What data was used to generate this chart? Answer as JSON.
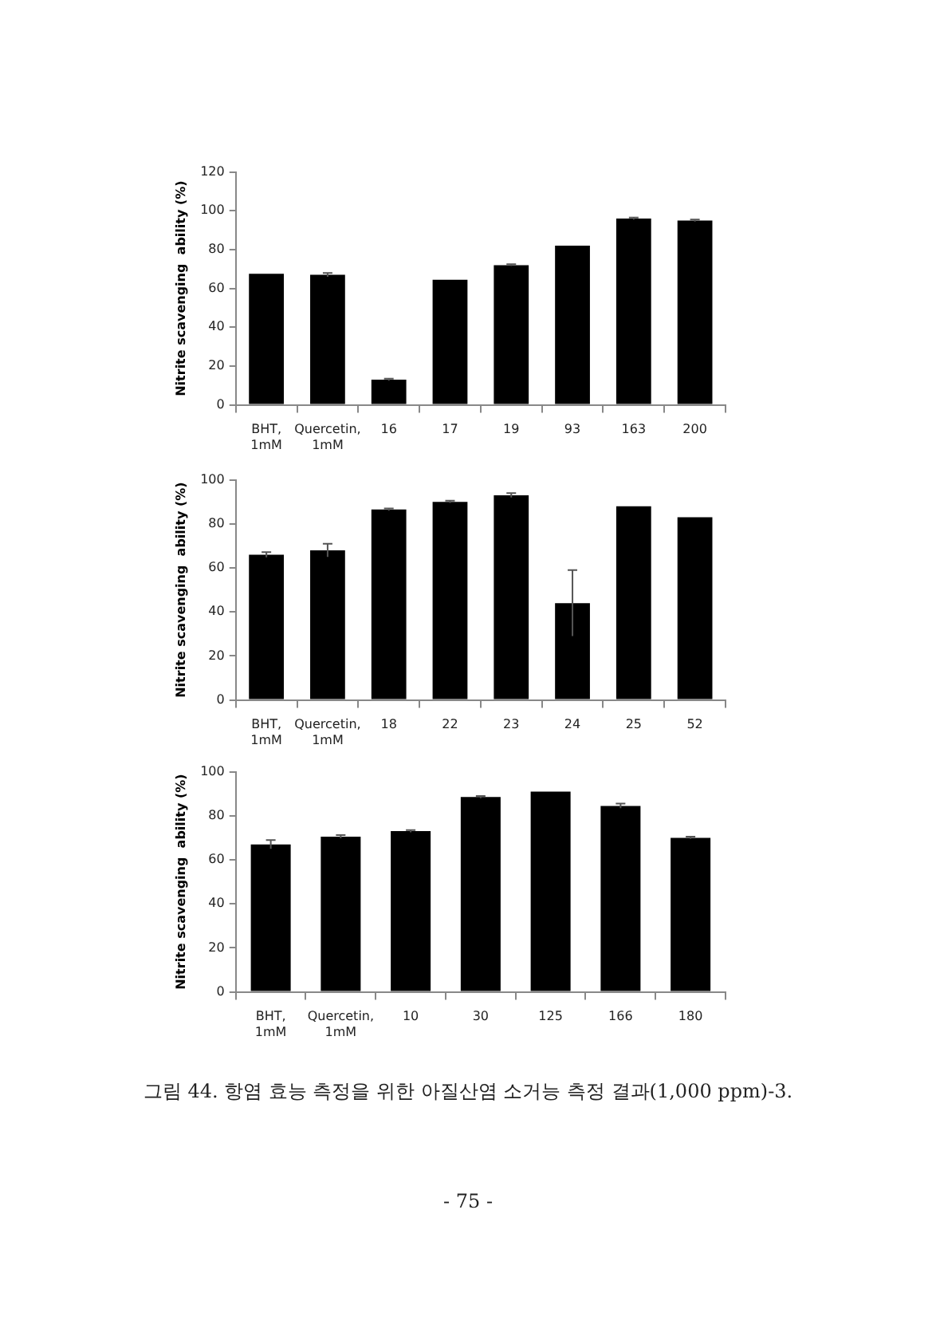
{
  "chart_data": [
    {
      "type": "bar",
      "ylabel": "Nitrite scavenging  ability (%)",
      "categories": [
        "BHT, 1mM",
        "Quercetin, 1mM",
        "16",
        "17",
        "19",
        "93",
        "163",
        "200"
      ],
      "color": "#000000",
      "values": [
        67.5,
        67,
        13,
        64.5,
        72,
        82,
        96,
        95
      ],
      "errors": [
        null,
        1,
        0.5,
        null,
        0.5,
        null,
        0.5,
        0.5
      ],
      "ylim": [
        0,
        120
      ],
      "yticks": [
        0,
        20,
        40,
        60,
        80,
        100,
        120
      ],
      "grid": false,
      "legend": false
    },
    {
      "type": "bar",
      "ylabel": "Nitrite scavenging  ability (%)",
      "categories": [
        "BHT, 1mM",
        "Quercetin, 1mM",
        "18",
        "22",
        "23",
        "24",
        "25",
        "52"
      ],
      "color": "#000000",
      "values": [
        66,
        68,
        86.5,
        90,
        93,
        44,
        88,
        83
      ],
      "errors": [
        1.2,
        3,
        0.5,
        0.5,
        1,
        15,
        null,
        null
      ],
      "ylim": [
        0,
        100
      ],
      "yticks": [
        0,
        20,
        40,
        60,
        80,
        100
      ],
      "grid": false,
      "legend": false
    },
    {
      "type": "bar",
      "ylabel": "Nitrite scavenging  ability (%)",
      "categories": [
        "BHT, 1mM",
        "Quercetin, 1mM",
        "10",
        "30",
        "125",
        "166",
        "180"
      ],
      "color": "#000000",
      "values": [
        67,
        70.5,
        73,
        88.5,
        91,
        84.5,
        70
      ],
      "errors": [
        2,
        0.7,
        0.5,
        0.5,
        null,
        1,
        0.5
      ],
      "ylim": [
        0,
        100
      ],
      "yticks": [
        0,
        20,
        40,
        60,
        80,
        100
      ],
      "grid": false,
      "legend": false,
      "annotations": [
        "그림 44. 항염 효능 측정을 위한 아질산염 소거능 측정 결과(1,000 ppm)-3.",
        "- 75 -"
      ]
    }
  ]
}
